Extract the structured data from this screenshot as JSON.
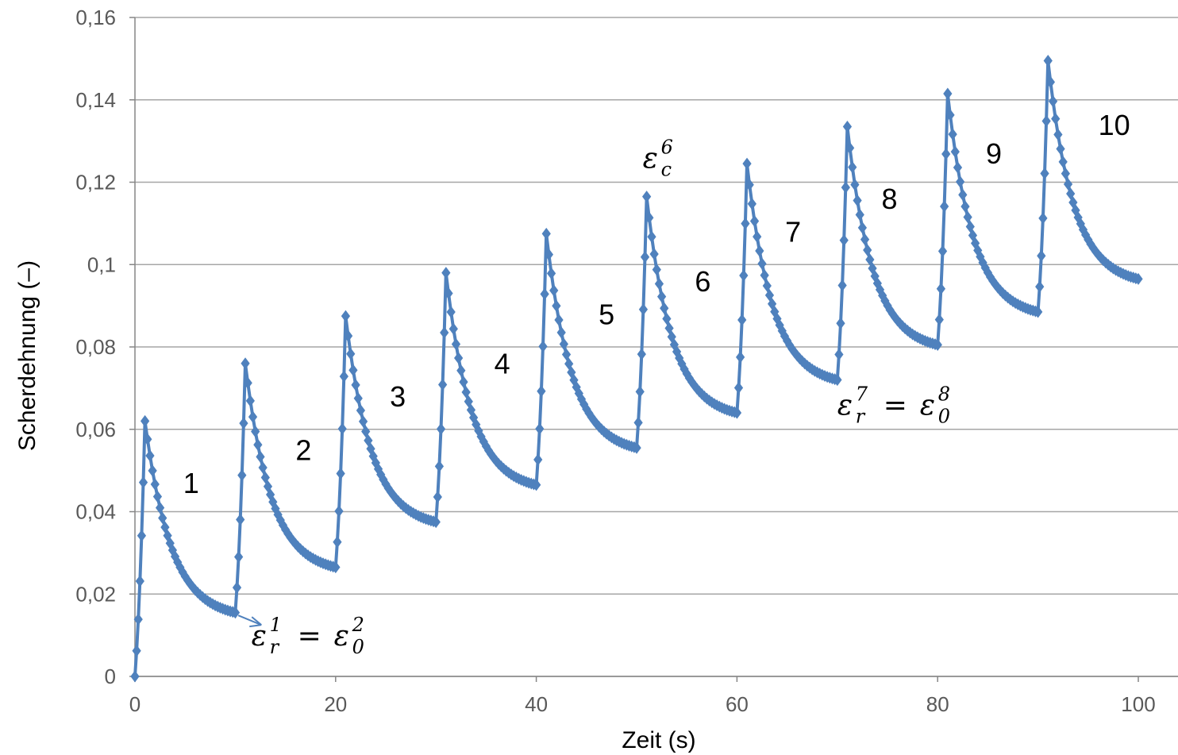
{
  "chart_data": {
    "type": "line",
    "xlabel": "Zeit (s)",
    "ylabel": "Scherdehnung (–)",
    "xlim": [
      0,
      100
    ],
    "ylim": [
      0,
      0.16
    ],
    "x_ticks": [
      "0",
      "20",
      "40",
      "60",
      "80",
      "100"
    ],
    "y_ticks": [
      "0",
      "0,02",
      "0,04",
      "0,06",
      "0,08",
      "0,1",
      "0,12",
      "0,14",
      "0,16"
    ],
    "grid": "horizontal",
    "legend": "none",
    "series_color": "#4F81BD",
    "marker": "diamond",
    "cycles": [
      {
        "label": "1",
        "start_t": 0,
        "start": 0,
        "peak": 0.062,
        "end": 0.0155
      },
      {
        "label": "2",
        "start_t": 10,
        "start": 0.0155,
        "peak": 0.076,
        "end": 0.0265
      },
      {
        "label": "3",
        "start_t": 20,
        "start": 0.0265,
        "peak": 0.0875,
        "end": 0.0375
      },
      {
        "label": "4",
        "start_t": 30,
        "start": 0.0375,
        "peak": 0.098,
        "end": 0.0465
      },
      {
        "label": "5",
        "start_t": 40,
        "start": 0.0465,
        "peak": 0.1075,
        "end": 0.0555
      },
      {
        "label": "6",
        "start_t": 50,
        "start": 0.0555,
        "peak": 0.1165,
        "end": 0.064
      },
      {
        "label": "7",
        "start_t": 60,
        "start": 0.064,
        "peak": 0.1245,
        "end": 0.072
      },
      {
        "label": "8",
        "start_t": 70,
        "start": 0.072,
        "peak": 0.1335,
        "end": 0.0805
      },
      {
        "label": "9",
        "start_t": 80,
        "start": 0.0805,
        "peak": 0.1415,
        "end": 0.0885
      },
      {
        "label": "10",
        "start_t": 90,
        "start": 0.0885,
        "peak": 0.1495,
        "end": 0.0965
      }
    ],
    "cycle_label_positions": [
      {
        "label": "1",
        "t": 5.6,
        "y": 0.0445
      },
      {
        "label": "2",
        "t": 16.8,
        "y": 0.0525
      },
      {
        "label": "3",
        "t": 26.2,
        "y": 0.0655
      },
      {
        "label": "4",
        "t": 36.6,
        "y": 0.0735
      },
      {
        "label": "5",
        "t": 47.0,
        "y": 0.0855
      },
      {
        "label": "6",
        "t": 56.6,
        "y": 0.0935
      },
      {
        "label": "7",
        "t": 65.6,
        "y": 0.1055
      },
      {
        "label": "8",
        "t": 75.2,
        "y": 0.1135
      },
      {
        "label": "9",
        "t": 85.6,
        "y": 0.1245
      },
      {
        "label": "10",
        "t": 97.6,
        "y": 0.1315
      }
    ],
    "annotations": [
      {
        "base": "ε",
        "sub": "r",
        "sup": "1",
        "op": "=",
        "base2": "ε",
        "sub2": "0",
        "sup2": "2",
        "t": 11.6,
        "y": 0.0075,
        "arrow": true
      },
      {
        "base": "ε",
        "sub": "c",
        "sup": "6",
        "t": 50.6,
        "y": 0.1235
      },
      {
        "base": "ε",
        "sub": "r",
        "sup": "7",
        "op": "=",
        "base2": "ε",
        "sub2": "0",
        "sup2": "8",
        "t": 70.0,
        "y": 0.0635
      }
    ]
  }
}
